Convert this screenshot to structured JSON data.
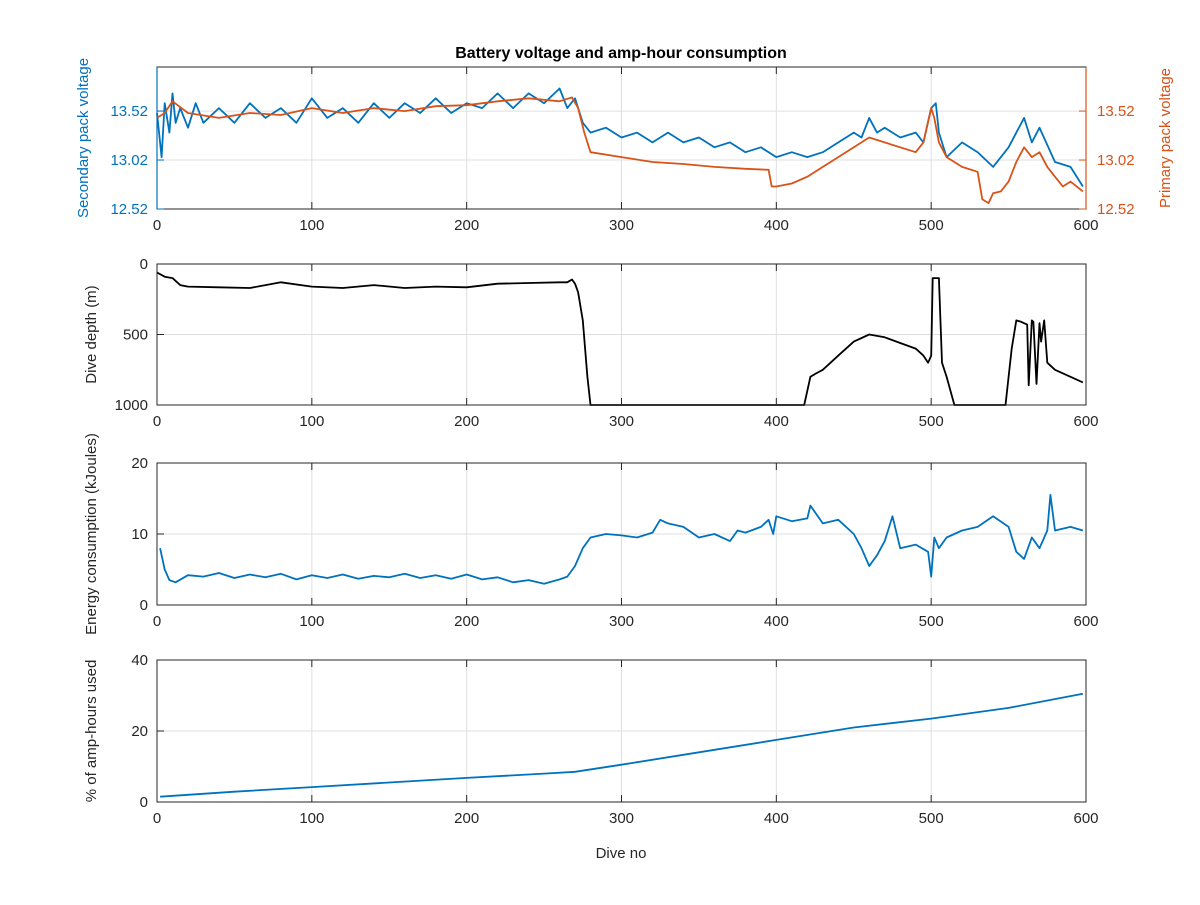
{
  "figure": {
    "title": "Battery voltage and amp-hour consumption",
    "xlabel": "Dive no"
  },
  "colors": {
    "blue": "#0072bd",
    "orange": "#d95319",
    "black": "#000000",
    "grid": "#dfdfdf",
    "axis": "#262626"
  },
  "chart_data": [
    {
      "type": "line",
      "panel": "voltage",
      "title": "Battery voltage and amp-hour consumption",
      "xlabel": "",
      "ylabel_left": "Secondary pack voltage",
      "ylabel_right": "Primary pack voltage",
      "xlim": [
        0,
        600
      ],
      "ylim_left": [
        12.52,
        13.97
      ],
      "ylim_right": [
        12.52,
        13.97
      ],
      "xticks": [
        0,
        100,
        200,
        300,
        400,
        500,
        600
      ],
      "yticks_left": [
        12.52,
        13.02,
        13.52
      ],
      "yticks_right": [
        12.52,
        13.02,
        13.52
      ],
      "grid": true,
      "series": [
        {
          "axis": "left",
          "color": "#0072bd",
          "x": [
            0,
            3,
            5,
            8,
            10,
            12,
            15,
            20,
            25,
            30,
            40,
            50,
            60,
            70,
            80,
            90,
            100,
            110,
            120,
            130,
            140,
            150,
            160,
            170,
            180,
            190,
            200,
            210,
            220,
            230,
            240,
            250,
            260,
            265,
            270,
            275,
            280,
            290,
            300,
            310,
            320,
            330,
            340,
            350,
            360,
            370,
            380,
            390,
            400,
            410,
            420,
            430,
            440,
            450,
            455,
            460,
            465,
            470,
            480,
            490,
            495,
            500,
            503,
            505,
            510,
            520,
            530,
            540,
            550,
            555,
            560,
            565,
            570,
            580,
            590,
            598
          ],
          "y": [
            13.5,
            13.05,
            13.6,
            13.3,
            13.7,
            13.4,
            13.55,
            13.35,
            13.6,
            13.4,
            13.55,
            13.4,
            13.6,
            13.45,
            13.55,
            13.4,
            13.65,
            13.45,
            13.55,
            13.4,
            13.6,
            13.45,
            13.6,
            13.5,
            13.65,
            13.5,
            13.6,
            13.55,
            13.7,
            13.55,
            13.7,
            13.6,
            13.75,
            13.55,
            13.65,
            13.4,
            13.3,
            13.35,
            13.25,
            13.3,
            13.2,
            13.3,
            13.2,
            13.25,
            13.15,
            13.2,
            13.1,
            13.15,
            13.05,
            13.1,
            13.05,
            13.1,
            13.2,
            13.3,
            13.25,
            13.45,
            13.3,
            13.35,
            13.25,
            13.3,
            13.2,
            13.55,
            13.6,
            13.3,
            13.05,
            13.2,
            13.1,
            12.95,
            13.15,
            13.3,
            13.45,
            13.2,
            13.35,
            13.0,
            12.95,
            12.75
          ]
        },
        {
          "axis": "right",
          "color": "#d95319",
          "x": [
            0,
            5,
            10,
            20,
            40,
            60,
            80,
            100,
            120,
            140,
            160,
            180,
            200,
            220,
            240,
            260,
            268,
            272,
            276,
            280,
            300,
            320,
            340,
            360,
            380,
            395,
            397,
            400,
            410,
            420,
            430,
            440,
            450,
            460,
            470,
            480,
            490,
            495,
            500,
            502,
            505,
            510,
            520,
            530,
            533,
            537,
            540,
            545,
            550,
            555,
            560,
            565,
            570,
            575,
            580,
            585,
            590,
            598
          ],
          "y": [
            13.45,
            13.5,
            13.62,
            13.5,
            13.45,
            13.5,
            13.48,
            13.55,
            13.5,
            13.55,
            13.52,
            13.57,
            13.58,
            13.62,
            13.65,
            13.62,
            13.66,
            13.55,
            13.3,
            13.1,
            13.05,
            13.0,
            12.98,
            12.95,
            12.93,
            12.92,
            12.75,
            12.75,
            12.78,
            12.85,
            12.95,
            13.05,
            13.15,
            13.25,
            13.2,
            13.15,
            13.1,
            13.2,
            13.55,
            13.45,
            13.2,
            13.05,
            12.95,
            12.9,
            12.62,
            12.58,
            12.68,
            12.7,
            12.8,
            13.0,
            13.15,
            13.05,
            13.1,
            12.95,
            12.85,
            12.75,
            12.8,
            12.7
          ]
        }
      ]
    },
    {
      "type": "line",
      "panel": "depth",
      "xlabel": "",
      "ylabel": "Dive depth (m)",
      "xlim": [
        0,
        600
      ],
      "ylim": [
        0,
        1000
      ],
      "y_reversed": true,
      "xticks": [
        0,
        100,
        200,
        300,
        400,
        500,
        600
      ],
      "yticks": [
        0,
        500,
        1000
      ],
      "grid": true,
      "series": [
        {
          "color": "#000000",
          "x": [
            0,
            5,
            10,
            15,
            20,
            40,
            60,
            80,
            100,
            120,
            140,
            160,
            180,
            200,
            220,
            240,
            260,
            265,
            268,
            270,
            272,
            275,
            278,
            280,
            300,
            350,
            400,
            418,
            422,
            425,
            430,
            440,
            450,
            460,
            470,
            480,
            490,
            495,
            498,
            500,
            501,
            503,
            505,
            507,
            510,
            515,
            520,
            540,
            548,
            552,
            555,
            558,
            560,
            562,
            563,
            565,
            566,
            568,
            570,
            571,
            573,
            575,
            580,
            590,
            598
          ],
          "y": [
            60,
            90,
            100,
            150,
            160,
            165,
            170,
            130,
            160,
            170,
            150,
            170,
            160,
            165,
            140,
            135,
            130,
            130,
            110,
            140,
            200,
            400,
            800,
            1000,
            1000,
            1000,
            1000,
            1000,
            800,
            780,
            750,
            650,
            550,
            500,
            520,
            560,
            600,
            650,
            700,
            650,
            100,
            100,
            100,
            700,
            800,
            1000,
            1000,
            1000,
            1000,
            600,
            400,
            410,
            420,
            430,
            860,
            400,
            410,
            850,
            420,
            550,
            400,
            700,
            750,
            800,
            840
          ]
        }
      ]
    },
    {
      "type": "line",
      "panel": "energy",
      "xlabel": "",
      "ylabel": "Energy consumption (kJoules)",
      "xlim": [
        0,
        600
      ],
      "ylim": [
        0,
        20
      ],
      "xticks": [
        0,
        100,
        200,
        300,
        400,
        500,
        600
      ],
      "yticks": [
        0,
        10,
        20
      ],
      "grid": true,
      "series": [
        {
          "color": "#0072bd",
          "x": [
            2,
            5,
            8,
            12,
            20,
            30,
            40,
            50,
            60,
            70,
            80,
            90,
            100,
            110,
            120,
            130,
            140,
            150,
            160,
            170,
            180,
            190,
            200,
            210,
            220,
            230,
            240,
            250,
            260,
            265,
            270,
            275,
            280,
            290,
            300,
            310,
            320,
            325,
            330,
            340,
            350,
            360,
            370,
            375,
            380,
            390,
            395,
            398,
            400,
            410,
            420,
            422,
            430,
            440,
            450,
            455,
            460,
            465,
            470,
            475,
            480,
            490,
            498,
            500,
            502,
            505,
            510,
            520,
            530,
            540,
            550,
            555,
            560,
            565,
            570,
            575,
            577,
            580,
            590,
            598
          ],
          "y": [
            8,
            5,
            3.5,
            3.2,
            4.2,
            4.0,
            4.5,
            3.8,
            4.3,
            3.9,
            4.4,
            3.6,
            4.2,
            3.8,
            4.3,
            3.7,
            4.1,
            3.9,
            4.4,
            3.8,
            4.2,
            3.7,
            4.3,
            3.6,
            3.9,
            3.2,
            3.5,
            3.0,
            3.6,
            4.0,
            5.5,
            8.0,
            9.5,
            10.0,
            9.8,
            9.5,
            10.2,
            12.0,
            11.5,
            11.0,
            9.5,
            10.0,
            9.0,
            10.5,
            10.2,
            11.0,
            12.0,
            10.0,
            12.5,
            11.8,
            12.2,
            14.0,
            11.5,
            12.0,
            10.0,
            8.0,
            5.5,
            7.0,
            9.0,
            12.5,
            8.0,
            8.5,
            7.5,
            4.0,
            9.5,
            8.0,
            9.5,
            10.5,
            11.0,
            12.5,
            11.0,
            7.5,
            6.5,
            9.5,
            8.0,
            10.5,
            15.5,
            10.5,
            11.0,
            10.5
          ]
        }
      ]
    },
    {
      "type": "line",
      "panel": "amphours",
      "xlabel": "Dive no",
      "ylabel": "% of amp-hours used",
      "xlim": [
        0,
        600
      ],
      "ylim": [
        0,
        40
      ],
      "xticks": [
        0,
        100,
        200,
        300,
        400,
        500,
        600
      ],
      "yticks": [
        0,
        20,
        40
      ],
      "grid": true,
      "series": [
        {
          "color": "#0072bd",
          "x": [
            2,
            50,
            100,
            150,
            200,
            250,
            270,
            300,
            350,
            400,
            450,
            500,
            550,
            598
          ],
          "y": [
            1.5,
            2.9,
            4.2,
            5.5,
            6.8,
            8.0,
            8.5,
            10.5,
            14.0,
            17.5,
            21.0,
            23.5,
            26.5,
            30.5
          ]
        }
      ]
    }
  ]
}
